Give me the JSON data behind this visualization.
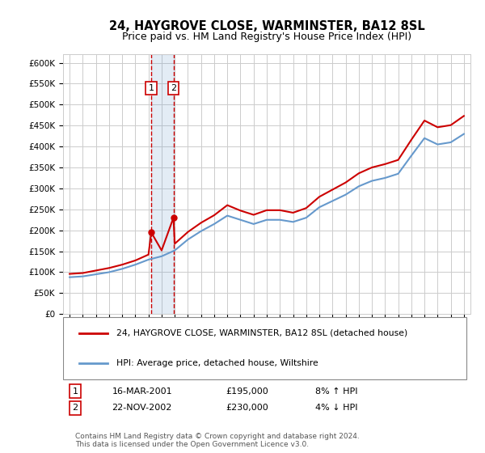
{
  "title": "24, HAYGROVE CLOSE, WARMINSTER, BA12 8SL",
  "subtitle": "Price paid vs. HM Land Registry's House Price Index (HPI)",
  "legend_line1": "24, HAYGROVE CLOSE, WARMINSTER, BA12 8SL (detached house)",
  "legend_line2": "HPI: Average price, detached house, Wiltshire",
  "footer": "Contains HM Land Registry data © Crown copyright and database right 2024.\nThis data is licensed under the Open Government Licence v3.0.",
  "sales": [
    {
      "label": "1",
      "date": "16-MAR-2001",
      "price": 195000,
      "hpi_pct": "8%",
      "hpi_dir": "↑"
    },
    {
      "label": "2",
      "date": "22-NOV-2002",
      "price": 230000,
      "hpi_pct": "4%",
      "hpi_dir": "↓"
    }
  ],
  "sale_years": [
    2001.21,
    2002.9
  ],
  "sale_prices": [
    195000,
    230000
  ],
  "hpi_years": [
    1995,
    1996,
    1997,
    1998,
    1999,
    2000,
    2001,
    2002,
    2003,
    2004,
    2005,
    2006,
    2007,
    2008,
    2009,
    2010,
    2011,
    2012,
    2013,
    2014,
    2015,
    2016,
    2017,
    2018,
    2019,
    2020,
    2021,
    2022,
    2023,
    2024,
    2025
  ],
  "hpi_values": [
    88000,
    90000,
    95000,
    100000,
    108000,
    118000,
    130000,
    138000,
    152000,
    178000,
    198000,
    215000,
    235000,
    225000,
    215000,
    225000,
    225000,
    220000,
    230000,
    255000,
    270000,
    285000,
    305000,
    318000,
    325000,
    335000,
    378000,
    420000,
    405000,
    410000,
    430000
  ],
  "prop_years": [
    1995,
    1996,
    1997,
    1998,
    1999,
    2000,
    2001,
    2001.21,
    2002,
    2002.9,
    2003,
    2004,
    2005,
    2006,
    2007,
    2008,
    2009,
    2010,
    2011,
    2012,
    2013,
    2014,
    2015,
    2016,
    2017,
    2018,
    2019,
    2020,
    2021,
    2022,
    2023,
    2024,
    2025
  ],
  "prop_values": [
    96000,
    98000,
    104000,
    110000,
    118000,
    128000,
    142000,
    195000,
    152000,
    230000,
    168000,
    196000,
    218000,
    236000,
    260000,
    247000,
    237000,
    248000,
    248000,
    242000,
    253000,
    280000,
    297000,
    314000,
    336000,
    350000,
    358000,
    368000,
    416000,
    462000,
    446000,
    451000,
    473000
  ],
  "ylim": [
    0,
    620000
  ],
  "xlim": [
    1994.5,
    2025.5
  ],
  "yticks": [
    0,
    50000,
    100000,
    150000,
    200000,
    250000,
    300000,
    350000,
    400000,
    450000,
    500000,
    550000,
    600000
  ],
  "xticks": [
    1995,
    1996,
    1997,
    1998,
    1999,
    2000,
    2001,
    2002,
    2003,
    2004,
    2005,
    2006,
    2007,
    2008,
    2009,
    2010,
    2011,
    2012,
    2013,
    2014,
    2015,
    2016,
    2017,
    2018,
    2019,
    2020,
    2021,
    2022,
    2023,
    2024,
    2025
  ],
  "red_color": "#cc0000",
  "blue_color": "#6699cc",
  "sale1_x": 2001.21,
  "sale2_x": 2002.9,
  "vline_color": "#cc0000",
  "box_fill": "#ddeeff",
  "grid_color": "#cccccc",
  "bg_color": "#ffffff"
}
